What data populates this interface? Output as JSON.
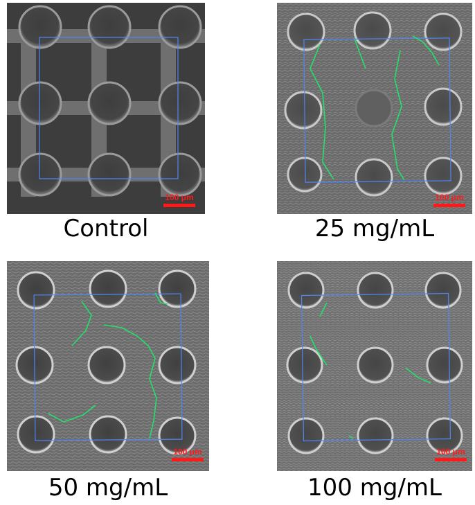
{
  "figure": {
    "panels": [
      {
        "caption": "Control",
        "scalebar": "100 μm",
        "variant": "control"
      },
      {
        "caption": "25 mg/mL",
        "scalebar": "100 μm",
        "variant": "coated"
      },
      {
        "caption": "50 mg/mL",
        "scalebar": "100 μm",
        "variant": "coated"
      },
      {
        "caption": "100 mg/mL",
        "scalebar": "100 μm",
        "variant": "coated"
      }
    ]
  },
  "colors": {
    "roi_box": "#4f86f7",
    "crack_trace": "#22e06a",
    "scalebar": "#ff1a1a",
    "sem_background": "#5a5a5a"
  }
}
